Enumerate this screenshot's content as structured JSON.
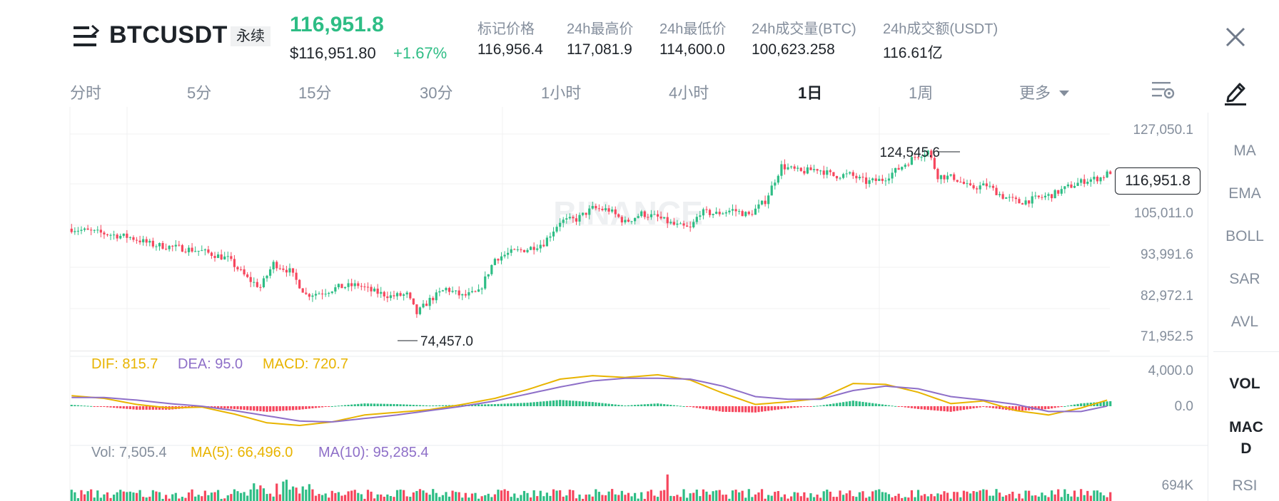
{
  "header": {
    "symbol": "BTCUSDT",
    "contract_badge": "永续",
    "last_price": "116,951.8",
    "usd_price": "$116,951.80",
    "change_pct": "+1.67%",
    "stats": [
      {
        "label": "标记价格",
        "value": "116,956.4"
      },
      {
        "label": "24h最高价",
        "value": "117,081.9"
      },
      {
        "label": "24h最低价",
        "value": "114,600.0"
      },
      {
        "label": "24h成交量(BTC)",
        "value": "100,623.258"
      },
      {
        "label": "24h成交额(USDT)",
        "value": "116.61亿"
      }
    ],
    "up_color": "#2ebd85",
    "down_color": "#f6465d"
  },
  "tabs": [
    "分时",
    "5分",
    "15分",
    "30分",
    "1小时",
    "4小时",
    "1日",
    "1周",
    "更多"
  ],
  "active_tab": "1日",
  "indicators": {
    "main": [
      "MA",
      "EMA",
      "BOLL",
      "SAR",
      "AVL"
    ],
    "sub": [
      "VOL",
      "MACD",
      "RSI"
    ]
  },
  "watermark": "BINANCE",
  "chart_data": [
    {
      "type": "candlestick",
      "price_axis_ticks": [
        "127,050.1",
        "105,011.0",
        "93,991.6",
        "82,972.1",
        "71,952.5"
      ],
      "ylim": [
        71952.5,
        127050.1
      ],
      "current_price_label": "116,951.8",
      "high_annotation": "124,545.6",
      "low_annotation": "74,457.0",
      "close_path": [
        [
          0,
          101800
        ],
        [
          10,
          100500
        ],
        [
          18,
          99500
        ],
        [
          25,
          97500
        ],
        [
          32,
          96800
        ],
        [
          40,
          95800
        ],
        [
          48,
          93800
        ],
        [
          54,
          88500
        ],
        [
          58,
          86200
        ],
        [
          62,
          92500
        ],
        [
          67,
          90500
        ],
        [
          72,
          84200
        ],
        [
          77,
          84800
        ],
        [
          82,
          86200
        ],
        [
          88,
          86800
        ],
        [
          92,
          85200
        ],
        [
          98,
          83800
        ],
        [
          103,
          84200
        ],
        [
          106,
          79200
        ],
        [
          110,
          82800
        ],
        [
          115,
          85800
        ],
        [
          120,
          83800
        ],
        [
          125,
          84800
        ],
        [
          130,
          93800
        ],
        [
          135,
          95500
        ],
        [
          140,
          96400
        ],
        [
          145,
          98000
        ],
        [
          150,
          103800
        ],
        [
          155,
          104300
        ],
        [
          160,
          107200
        ],
        [
          165,
          106800
        ],
        [
          170,
          103500
        ],
        [
          175,
          105800
        ],
        [
          180,
          104800
        ],
        [
          185,
          102800
        ],
        [
          190,
          101800
        ],
        [
          193,
          106200
        ],
        [
          198,
          105800
        ],
        [
          203,
          106800
        ],
        [
          208,
          105400
        ],
        [
          213,
          109200
        ],
        [
          218,
          118500
        ],
        [
          224,
          116900
        ],
        [
          229,
          117800
        ],
        [
          234,
          115900
        ],
        [
          239,
          116200
        ],
        [
          244,
          114200
        ],
        [
          249,
          114900
        ],
        [
          254,
          117800
        ],
        [
          259,
          121000
        ],
        [
          263,
          122500
        ],
        [
          266,
          115900
        ],
        [
          271,
          115400
        ],
        [
          276,
          112600
        ],
        [
          281,
          113400
        ],
        [
          286,
          110400
        ],
        [
          291,
          108800
        ],
        [
          296,
          109800
        ],
        [
          301,
          110800
        ],
        [
          306,
          112900
        ],
        [
          311,
          114600
        ],
        [
          316,
          115400
        ],
        [
          319,
          116951.8
        ]
      ]
    },
    {
      "type": "macd",
      "legend": {
        "dif": "DIF: 815.7",
        "dea": "DEA: 95.0",
        "macd": "MACD: 720.7"
      },
      "axis_ticks": [
        "4,000.0",
        "0.0"
      ],
      "ylim": [
        -2500,
        4000
      ],
      "colors": {
        "dif": "#e8b400",
        "dea": "#8e6fc8"
      },
      "dif": [
        [
          0,
          1200
        ],
        [
          10,
          900
        ],
        [
          20,
          200
        ],
        [
          30,
          -200
        ],
        [
          40,
          -100
        ],
        [
          50,
          -900
        ],
        [
          60,
          -1900
        ],
        [
          70,
          -2200
        ],
        [
          80,
          -1800
        ],
        [
          90,
          -1000
        ],
        [
          100,
          -700
        ],
        [
          110,
          -400
        ],
        [
          120,
          200
        ],
        [
          130,
          900
        ],
        [
          140,
          1900
        ],
        [
          150,
          3100
        ],
        [
          160,
          3500
        ],
        [
          170,
          3300
        ],
        [
          180,
          3600
        ],
        [
          190,
          3000
        ],
        [
          200,
          1500
        ],
        [
          210,
          200
        ],
        [
          220,
          500
        ],
        [
          230,
          900
        ],
        [
          240,
          2600
        ],
        [
          250,
          2500
        ],
        [
          260,
          1600
        ],
        [
          270,
          300
        ],
        [
          280,
          600
        ],
        [
          290,
          -500
        ],
        [
          300,
          -1000
        ],
        [
          310,
          -200
        ],
        [
          319,
          815.7
        ]
      ],
      "dea": [
        [
          0,
          1000
        ],
        [
          10,
          1000
        ],
        [
          20,
          700
        ],
        [
          30,
          300
        ],
        [
          40,
          0
        ],
        [
          50,
          -500
        ],
        [
          60,
          -1100
        ],
        [
          70,
          -1700
        ],
        [
          80,
          -1800
        ],
        [
          90,
          -1400
        ],
        [
          100,
          -1000
        ],
        [
          110,
          -500
        ],
        [
          120,
          0
        ],
        [
          130,
          600
        ],
        [
          140,
          1400
        ],
        [
          150,
          2200
        ],
        [
          160,
          2900
        ],
        [
          170,
          3200
        ],
        [
          180,
          3200
        ],
        [
          190,
          3100
        ],
        [
          200,
          2300
        ],
        [
          210,
          1100
        ],
        [
          220,
          800
        ],
        [
          230,
          800
        ],
        [
          240,
          1800
        ],
        [
          250,
          2300
        ],
        [
          260,
          2000
        ],
        [
          270,
          1100
        ],
        [
          280,
          700
        ],
        [
          290,
          200
        ],
        [
          300,
          -600
        ],
        [
          310,
          -600
        ],
        [
          319,
          95
        ]
      ]
    },
    {
      "type": "volume",
      "legend": {
        "vol": "Vol: 7,505.4",
        "ma5": "MA(5): 66,496.0",
        "ma10": "MA(10): 95,285.4"
      },
      "axis_ticks": [
        "694K"
      ],
      "ylim": [
        0,
        694000
      ]
    }
  ]
}
